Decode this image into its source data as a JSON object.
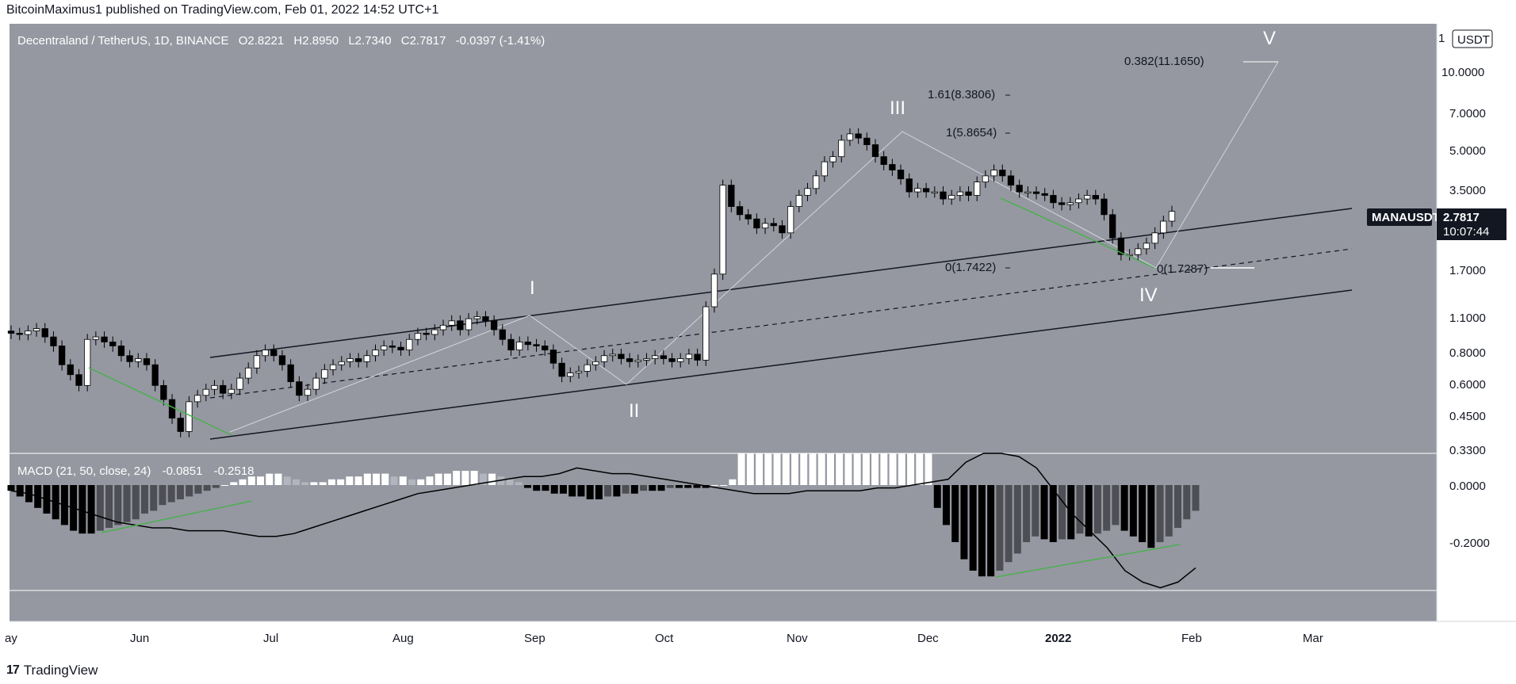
{
  "header": {
    "published": "BitcoinMaximus1 published on TradingView.com, Feb 01, 2022 14:52 UTC+1"
  },
  "footer": {
    "brand": "TradingView",
    "logo_glyph": "17"
  },
  "colors": {
    "panel_bg": "#9598a1",
    "bull": "#ffffff",
    "bear": "#000000",
    "divergence": "#4caf50",
    "channel": "#131722",
    "badge_bg": "#131722"
  },
  "legend": {
    "symbol": "Decentraland / TetherUS, 1D, BINANCE",
    "o_label": "O",
    "o": "2.8221",
    "h_label": "H",
    "h": "2.8950",
    "l_label": "L",
    "l": "2.7340",
    "c_label": "C",
    "c": "2.7817",
    "change": "-0.0397 (-1.41%)"
  },
  "macd_legend": {
    "label": "MACD (21, 50, close, 24)",
    "v1": "-0.0851",
    "v2": "-0.2518"
  },
  "price_axis": {
    "currency": "USDT",
    "ticks": [
      "10.0000",
      "7.0000",
      "5.0000",
      "3.5000",
      "1.7000",
      "1.1000",
      "0.8000",
      "0.6000",
      "0.4500",
      "0.3300"
    ],
    "top_tick": "1"
  },
  "badge": {
    "symbol": "MANAUSDT",
    "price": "2.7817",
    "countdown": "10:07:44"
  },
  "macd_axis": {
    "ticks": [
      "0.0000",
      "-0.2000"
    ]
  },
  "time_axis": {
    "ticks": [
      "ay",
      "Jun",
      "Jul",
      "Aug",
      "Sep",
      "Oct",
      "Nov",
      "Dec",
      "2022",
      "Feb",
      "Mar"
    ]
  },
  "waves": {
    "w1": "I",
    "w2": "II",
    "w3": "III",
    "w4": "IV",
    "w5": "V"
  },
  "fib": {
    "f0382": "0.382(11.1650)",
    "f161": "1.61(8.3806)",
    "f1": "1(5.8654)",
    "f0a": "0(1.7422)",
    "f0b": "0(1.7287)"
  },
  "chart_data": {
    "type": "candlestick",
    "title": "Decentraland / TetherUS, 1D, BINANCE",
    "scale": "log",
    "ylim": [
      0.33,
      14.5
    ],
    "x_range": [
      "2021-05-01",
      "2022-03-15"
    ],
    "series": [
      {
        "name": "MANAUSDT",
        "close": [
          0.95,
          0.94,
          0.97,
          0.99,
          0.92,
          0.85,
          0.72,
          0.66,
          0.6,
          0.9,
          0.92,
          0.88,
          0.85,
          0.78,
          0.74,
          0.76,
          0.72,
          0.6,
          0.53,
          0.45,
          0.4,
          0.52,
          0.55,
          0.58,
          0.6,
          0.56,
          0.58,
          0.64,
          0.7,
          0.78,
          0.82,
          0.78,
          0.72,
          0.62,
          0.55,
          0.58,
          0.64,
          0.69,
          0.72,
          0.74,
          0.76,
          0.74,
          0.78,
          0.82,
          0.85,
          0.84,
          0.82,
          0.9,
          0.95,
          0.94,
          0.98,
          1.02,
          1.06,
          0.98,
          1.08,
          1.1,
          1.06,
          0.98,
          0.9,
          0.82,
          0.88,
          0.86,
          0.85,
          0.82,
          0.73,
          0.65,
          0.67,
          0.68,
          0.72,
          0.74,
          0.78,
          0.79,
          0.76,
          0.74,
          0.75,
          0.76,
          0.78,
          0.76,
          0.74,
          0.76,
          0.79,
          0.75,
          1.2,
          1.6,
          3.5,
          2.9,
          2.7,
          2.6,
          2.4,
          2.5,
          2.45,
          2.3,
          2.9,
          3.2,
          3.4,
          3.8,
          4.3,
          4.5,
          5.2,
          5.5,
          5.3,
          5.0,
          4.5,
          4.2,
          4.0,
          3.7,
          3.3,
          3.4,
          3.3,
          3.3,
          3.1,
          3.2,
          3.3,
          3.2,
          3.6,
          3.8,
          4.0,
          3.8,
          3.5,
          3.3,
          3.3,
          3.25,
          3.2,
          3.0,
          2.95,
          3.0,
          3.1,
          3.2,
          3.1,
          2.7,
          2.2,
          1.9,
          1.9,
          2.0,
          2.1,
          2.3,
          2.55,
          2.78
        ]
      }
    ],
    "overlays": {
      "elliott_waves": [
        "I",
        "II",
        "III",
        "IV",
        "V"
      ],
      "fibonacci": [
        {
          "label": "0.382",
          "value": 11.165
        },
        {
          "label": "1.61",
          "value": 8.3806
        },
        {
          "label": "1",
          "value": 5.8654
        },
        {
          "label": "0",
          "value": 1.7422
        },
        {
          "label": "0",
          "value": 1.7287
        }
      ],
      "channel": "ascending parallel channel with dashed midline"
    },
    "macd": {
      "name": "MACD (21, 50, close, 24)",
      "ylim": [
        -0.4,
        0.12
      ],
      "histogram": [
        -0.02,
        -0.04,
        -0.06,
        -0.08,
        -0.1,
        -0.12,
        -0.14,
        -0.16,
        -0.17,
        -0.17,
        -0.16,
        -0.15,
        -0.14,
        -0.13,
        -0.12,
        -0.1,
        -0.09,
        -0.07,
        -0.06,
        -0.05,
        -0.04,
        -0.03,
        -0.02,
        -0.01,
        0.0,
        0.01,
        0.02,
        0.03,
        0.03,
        0.04,
        0.04,
        0.03,
        0.02,
        0.01,
        0.01,
        0.01,
        0.02,
        0.02,
        0.03,
        0.03,
        0.04,
        0.04,
        0.04,
        0.03,
        0.03,
        0.02,
        0.02,
        0.03,
        0.04,
        0.04,
        0.05,
        0.05,
        0.05,
        0.04,
        0.04,
        0.03,
        0.02,
        0.01,
        -0.01,
        -0.02,
        -0.02,
        -0.03,
        -0.03,
        -0.04,
        -0.04,
        -0.05,
        -0.05,
        -0.04,
        -0.04,
        -0.03,
        -0.03,
        -0.02,
        -0.02,
        -0.02,
        -0.01,
        -0.01,
        -0.01,
        -0.01,
        -0.01,
        0.0,
        0.0,
        0.02,
        0.12,
        0.12,
        0.12,
        0.12,
        0.12,
        0.12,
        0.12,
        0.12,
        0.12,
        0.12,
        0.12,
        0.12,
        0.12,
        0.12,
        0.12,
        0.12,
        0.12,
        0.12,
        0.12,
        0.12,
        0.12,
        0.12,
        -0.08,
        -0.14,
        -0.2,
        -0.26,
        -0.3,
        -0.32,
        -0.32,
        -0.3,
        -0.27,
        -0.24,
        -0.2,
        -0.18,
        -0.19,
        -0.2,
        -0.19,
        -0.19,
        -0.17,
        -0.18,
        -0.17,
        -0.16,
        -0.14,
        -0.16,
        -0.18,
        -0.2,
        -0.22,
        -0.2,
        -0.18,
        -0.15,
        -0.12,
        -0.09
      ],
      "signal": [
        -0.02,
        -0.03,
        -0.05,
        -0.07,
        -0.09,
        -0.11,
        -0.13,
        -0.14,
        -0.15,
        -0.15,
        -0.16,
        -0.16,
        -0.16,
        -0.17,
        -0.18,
        -0.18,
        -0.17,
        -0.15,
        -0.13,
        -0.11,
        -0.09,
        -0.07,
        -0.05,
        -0.03,
        -0.02,
        -0.01,
        0.0,
        0.01,
        0.02,
        0.03,
        0.03,
        0.04,
        0.06,
        0.05,
        0.04,
        0.04,
        0.03,
        0.02,
        0.01,
        0.0,
        -0.01,
        -0.02,
        -0.03,
        -0.03,
        -0.03,
        -0.02,
        -0.02,
        -0.02,
        -0.02,
        -0.01,
        -0.01,
        0.0,
        0.01,
        0.02,
        0.08,
        0.2,
        0.12,
        0.1,
        0.06,
        -0.02,
        -0.1,
        -0.16,
        -0.22,
        -0.3,
        -0.34,
        -0.36,
        -0.34,
        -0.29
      ]
    }
  }
}
